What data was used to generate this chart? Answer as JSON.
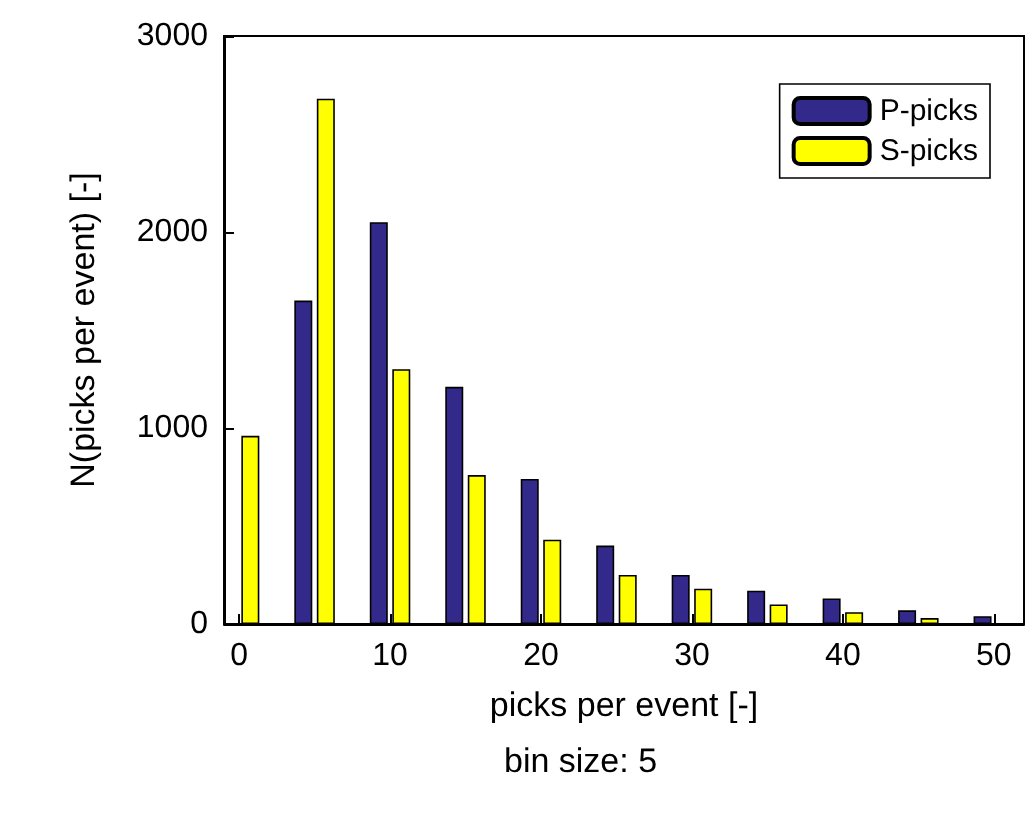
{
  "chart_data": {
    "type": "bar",
    "xlabel": "picks per event [-]",
    "ylabel": "N(picks per event) [-]",
    "annotations": [
      "bin size: 5"
    ],
    "x": [
      0,
      5,
      10,
      15,
      20,
      25,
      30,
      35,
      40,
      45,
      50
    ],
    "series": [
      {
        "name": "P-picks",
        "color": "#33298a",
        "values": [
          null,
          1650,
          2050,
          1210,
          740,
          400,
          250,
          170,
          130,
          70,
          40
        ]
      },
      {
        "name": "S-picks",
        "color": "#ffff00",
        "values": [
          960,
          2680,
          1300,
          760,
          430,
          250,
          180,
          100,
          60,
          30,
          null
        ]
      }
    ],
    "xlim": [
      -1,
      52
    ],
    "xticks": [
      0,
      10,
      20,
      30,
      40,
      50
    ],
    "ylim": [
      0,
      3000
    ],
    "yticks": [
      0,
      1000,
      2000,
      3000
    ],
    "grid": false,
    "legend": "top right"
  }
}
